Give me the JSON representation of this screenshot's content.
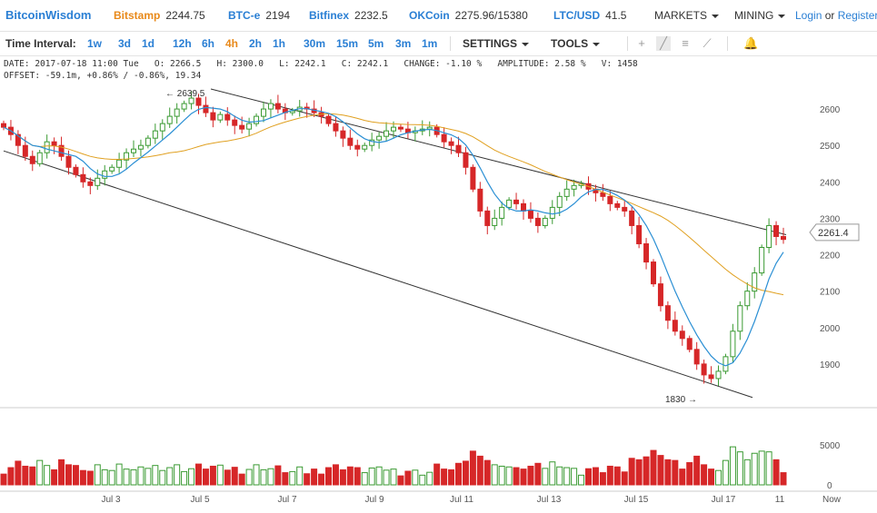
{
  "brand": "BitcoinWisdom",
  "colors": {
    "brand": "#2a7fd4",
    "market": "#e8891a",
    "up": "#3a9a32",
    "down": "#d62728",
    "ma_fast": "#2a8fd4",
    "ma_slow": "#e0a020",
    "trend": "#333333"
  },
  "markets": [
    {
      "name": "Bitstamp",
      "price": "2244.75",
      "color": "#e8891a"
    },
    {
      "name": "BTC-e",
      "price": "2194",
      "color": "#2a7fd4"
    },
    {
      "name": "Bitfinex",
      "price": "2232.5",
      "color": "#2a7fd4"
    },
    {
      "name": "OKCoin",
      "price": "2275.96/15380",
      "color": "#2a7fd4"
    },
    {
      "name": "LTC/USD",
      "price": "41.5",
      "color": "#2a7fd4"
    }
  ],
  "menus": {
    "markets": "MARKETS",
    "mining": "MINING"
  },
  "auth": {
    "login": "Login",
    "or": "or",
    "register": "Register"
  },
  "toolbar": {
    "label": "Time Interval:",
    "intervals": [
      "1w",
      "3d",
      "1d",
      "12h",
      "6h",
      "4h",
      "2h",
      "1h",
      "30m",
      "15m",
      "5m",
      "3m",
      "1m"
    ],
    "active_interval": "4h",
    "settings": "SETTINGS",
    "tools": "TOOLS",
    "icons": [
      "crosshair-icon",
      "line-draw-icon",
      "hlines-icon",
      "fib-icon",
      "alert-bell-icon"
    ]
  },
  "info": {
    "line1": "DATE: 2017-07-18 11:00 Tue   O: 2266.5   H: 2300.0   L: 2242.1   C: 2242.1   CHANGE: -1.10 %   AMPLITUDE: 2.58 %   V: 1458",
    "line2": "OFFSET: -59.1m, +0.86% / -0.86%, 19.34"
  },
  "chart_data": {
    "type": "candlestick",
    "price_axis": {
      "ticks": [
        2600,
        2500,
        2400,
        2300,
        2200,
        2100,
        2000,
        1900
      ],
      "range": [
        1790,
        2670
      ]
    },
    "volume_axis": {
      "ticks": [
        5000,
        0
      ],
      "range": [
        0,
        9000
      ]
    },
    "x_ticks": [
      "Jul 3",
      "Jul 5",
      "Jul 7",
      "Jul 9",
      "Jul 11",
      "Jul 13",
      "Jul 15",
      "Jul 17",
      "11",
      "Now"
    ],
    "current_price": "2261.4",
    "annotations": [
      {
        "label": "2639.5",
        "price": 2639.5
      },
      {
        "label": "1830",
        "price": 1830
      }
    ],
    "candles_close": [
      2550,
      2530,
      2500,
      2470,
      2450,
      2480,
      2510,
      2500,
      2470,
      2440,
      2420,
      2400,
      2390,
      2410,
      2430,
      2440,
      2460,
      2480,
      2490,
      2500,
      2520,
      2540,
      2560,
      2580,
      2600,
      2615,
      2630,
      2610,
      2590,
      2570,
      2585,
      2570,
      2555,
      2545,
      2560,
      2580,
      2600,
      2615,
      2600,
      2590,
      2595,
      2605,
      2600,
      2590,
      2580,
      2560,
      2540,
      2520,
      2500,
      2490,
      2500,
      2515,
      2525,
      2540,
      2550,
      2545,
      2535,
      2540,
      2545,
      2550,
      2530,
      2510,
      2500,
      2480,
      2440,
      2380,
      2320,
      2280,
      2300,
      2330,
      2350,
      2340,
      2320,
      2300,
      2280,
      2300,
      2330,
      2360,
      2380,
      2390,
      2395,
      2380,
      2370,
      2360,
      2340,
      2330,
      2320,
      2280,
      2230,
      2180,
      2120,
      2060,
      2020,
      1990,
      1970,
      1940,
      1900,
      1870,
      1860,
      1880,
      1920,
      1990,
      2060,
      2100,
      2150,
      2220,
      2280,
      2250,
      2242
    ]
  }
}
